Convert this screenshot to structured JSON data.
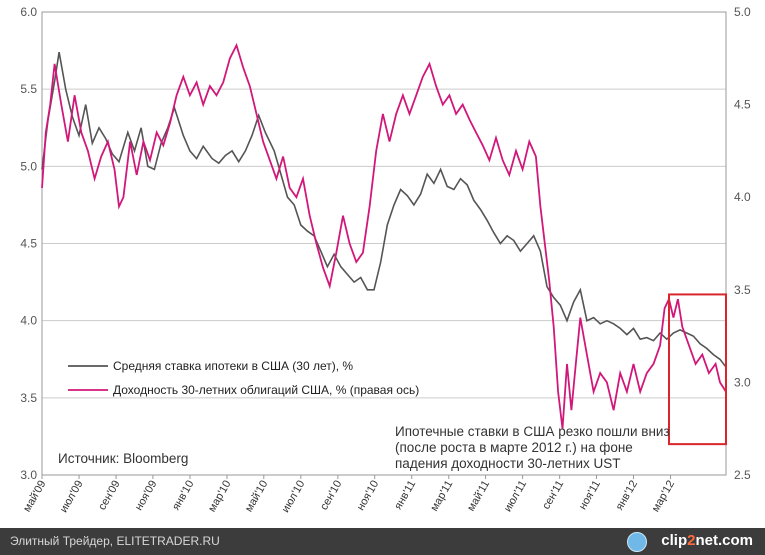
{
  "chart_data": {
    "type": "line",
    "title": "",
    "left_axis": {
      "ylim": [
        3.0,
        6.0
      ],
      "ticks": [
        "3.0",
        "3.5",
        "4.0",
        "4.5",
        "5.0",
        "5.5",
        "6.0"
      ]
    },
    "right_axis": {
      "ylim": [
        2.5,
        5.0
      ],
      "ticks": [
        "2.5",
        "3.0",
        "3.5",
        "4.0",
        "4.5",
        "5.0"
      ]
    },
    "x_range": [
      2009.333,
      2012.417
    ],
    "x_labels": [
      {
        "label": "май'09",
        "x": 2009.333
      },
      {
        "label": "июл'09",
        "x": 2009.5
      },
      {
        "label": "сен'09",
        "x": 2009.667
      },
      {
        "label": "ноя'09",
        "x": 2009.833
      },
      {
        "label": "янв'10",
        "x": 2010.0
      },
      {
        "label": "мар'10",
        "x": 2010.167
      },
      {
        "label": "май'10",
        "x": 2010.333
      },
      {
        "label": "июл'10",
        "x": 2010.5
      },
      {
        "label": "сен'10",
        "x": 2010.667
      },
      {
        "label": "ноя'10",
        "x": 2010.833
      },
      {
        "label": "янв'11",
        "x": 2011.0
      },
      {
        "label": "мар'11",
        "x": 2011.167
      },
      {
        "label": "май'11",
        "x": 2011.333
      },
      {
        "label": "июл'11",
        "x": 2011.5
      },
      {
        "label": "сен'11",
        "x": 2011.667
      },
      {
        "label": "ноя'11",
        "x": 2011.833
      },
      {
        "label": "янв'12",
        "x": 2012.0
      },
      {
        "label": "мар'12",
        "x": 2012.167
      }
    ],
    "series": [
      {
        "name": "Средняя ставка ипотеки в США (30 лет), %",
        "axis": "left",
        "color": "#555555",
        "points": [
          [
            2009.333,
            4.98
          ],
          [
            2009.36,
            5.3
          ],
          [
            2009.39,
            5.55
          ],
          [
            2009.41,
            5.74
          ],
          [
            2009.44,
            5.5
          ],
          [
            2009.47,
            5.32
          ],
          [
            2009.5,
            5.2
          ],
          [
            2009.53,
            5.4
          ],
          [
            2009.56,
            5.15
          ],
          [
            2009.59,
            5.25
          ],
          [
            2009.62,
            5.18
          ],
          [
            2009.65,
            5.08
          ],
          [
            2009.68,
            5.03
          ],
          [
            2009.72,
            5.22
          ],
          [
            2009.75,
            5.1
          ],
          [
            2009.78,
            5.25
          ],
          [
            2009.81,
            5.0
          ],
          [
            2009.84,
            4.98
          ],
          [
            2009.87,
            5.15
          ],
          [
            2009.9,
            5.25
          ],
          [
            2009.93,
            5.38
          ],
          [
            2009.97,
            5.2
          ],
          [
            2010.0,
            5.1
          ],
          [
            2010.03,
            5.05
          ],
          [
            2010.06,
            5.13
          ],
          [
            2010.1,
            5.05
          ],
          [
            2010.13,
            5.02
          ],
          [
            2010.16,
            5.07
          ],
          [
            2010.19,
            5.1
          ],
          [
            2010.22,
            5.03
          ],
          [
            2010.25,
            5.1
          ],
          [
            2010.28,
            5.2
          ],
          [
            2010.31,
            5.33
          ],
          [
            2010.34,
            5.22
          ],
          [
            2010.38,
            5.1
          ],
          [
            2010.41,
            4.95
          ],
          [
            2010.44,
            4.8
          ],
          [
            2010.47,
            4.75
          ],
          [
            2010.5,
            4.62
          ],
          [
            2010.53,
            4.58
          ],
          [
            2010.56,
            4.55
          ],
          [
            2010.59,
            4.45
          ],
          [
            2010.62,
            4.35
          ],
          [
            2010.65,
            4.43
          ],
          [
            2010.68,
            4.35
          ],
          [
            2010.71,
            4.3
          ],
          [
            2010.74,
            4.25
          ],
          [
            2010.77,
            4.28
          ],
          [
            2010.8,
            4.2
          ],
          [
            2010.83,
            4.2
          ],
          [
            2010.86,
            4.38
          ],
          [
            2010.89,
            4.62
          ],
          [
            2010.92,
            4.75
          ],
          [
            2010.95,
            4.85
          ],
          [
            2010.98,
            4.81
          ],
          [
            2011.01,
            4.75
          ],
          [
            2011.04,
            4.82
          ],
          [
            2011.07,
            4.95
          ],
          [
            2011.1,
            4.89
          ],
          [
            2011.13,
            4.98
          ],
          [
            2011.16,
            4.87
          ],
          [
            2011.19,
            4.85
          ],
          [
            2011.22,
            4.92
          ],
          [
            2011.25,
            4.88
          ],
          [
            2011.28,
            4.78
          ],
          [
            2011.31,
            4.72
          ],
          [
            2011.34,
            4.65
          ],
          [
            2011.37,
            4.57
          ],
          [
            2011.4,
            4.5
          ],
          [
            2011.43,
            4.55
          ],
          [
            2011.46,
            4.52
          ],
          [
            2011.49,
            4.45
          ],
          [
            2011.52,
            4.5
          ],
          [
            2011.55,
            4.55
          ],
          [
            2011.58,
            4.45
          ],
          [
            2011.61,
            4.22
          ],
          [
            2011.64,
            4.15
          ],
          [
            2011.67,
            4.1
          ],
          [
            2011.7,
            4.0
          ],
          [
            2011.73,
            4.12
          ],
          [
            2011.76,
            4.2
          ],
          [
            2011.79,
            4.0
          ],
          [
            2011.82,
            4.02
          ],
          [
            2011.85,
            3.98
          ],
          [
            2011.88,
            4.0
          ],
          [
            2011.91,
            3.98
          ],
          [
            2011.94,
            3.95
          ],
          [
            2011.97,
            3.91
          ],
          [
            2012.0,
            3.95
          ],
          [
            2012.03,
            3.88
          ],
          [
            2012.06,
            3.89
          ],
          [
            2012.09,
            3.87
          ],
          [
            2012.12,
            3.92
          ],
          [
            2012.15,
            3.88
          ],
          [
            2012.18,
            3.92
          ],
          [
            2012.21,
            3.94
          ],
          [
            2012.24,
            3.92
          ],
          [
            2012.27,
            3.9
          ],
          [
            2012.3,
            3.85
          ],
          [
            2012.33,
            3.82
          ],
          [
            2012.36,
            3.78
          ],
          [
            2012.39,
            3.75
          ],
          [
            2012.417,
            3.7
          ]
        ]
      },
      {
        "name": "Доходность 30-летних облигаций США, % (правая ось)",
        "axis": "right",
        "color": "#d1187a",
        "points": [
          [
            2009.333,
            4.05
          ],
          [
            2009.35,
            4.35
          ],
          [
            2009.37,
            4.5
          ],
          [
            2009.39,
            4.72
          ],
          [
            2009.42,
            4.5
          ],
          [
            2009.45,
            4.3
          ],
          [
            2009.48,
            4.55
          ],
          [
            2009.51,
            4.35
          ],
          [
            2009.54,
            4.25
          ],
          [
            2009.57,
            4.1
          ],
          [
            2009.6,
            4.22
          ],
          [
            2009.63,
            4.3
          ],
          [
            2009.66,
            4.15
          ],
          [
            2009.68,
            3.95
          ],
          [
            2009.7,
            4.0
          ],
          [
            2009.73,
            4.3
          ],
          [
            2009.76,
            4.12
          ],
          [
            2009.79,
            4.3
          ],
          [
            2009.82,
            4.2
          ],
          [
            2009.85,
            4.35
          ],
          [
            2009.88,
            4.28
          ],
          [
            2009.91,
            4.4
          ],
          [
            2009.94,
            4.55
          ],
          [
            2009.97,
            4.65
          ],
          [
            2010.0,
            4.55
          ],
          [
            2010.03,
            4.62
          ],
          [
            2010.06,
            4.5
          ],
          [
            2010.09,
            4.6
          ],
          [
            2010.12,
            4.55
          ],
          [
            2010.15,
            4.62
          ],
          [
            2010.18,
            4.75
          ],
          [
            2010.21,
            4.82
          ],
          [
            2010.24,
            4.7
          ],
          [
            2010.27,
            4.6
          ],
          [
            2010.3,
            4.45
          ],
          [
            2010.33,
            4.3
          ],
          [
            2010.36,
            4.2
          ],
          [
            2010.39,
            4.1
          ],
          [
            2010.42,
            4.22
          ],
          [
            2010.45,
            4.05
          ],
          [
            2010.48,
            4.0
          ],
          [
            2010.51,
            4.1
          ],
          [
            2010.54,
            3.9
          ],
          [
            2010.57,
            3.75
          ],
          [
            2010.6,
            3.62
          ],
          [
            2010.63,
            3.52
          ],
          [
            2010.66,
            3.7
          ],
          [
            2010.69,
            3.9
          ],
          [
            2010.72,
            3.75
          ],
          [
            2010.75,
            3.65
          ],
          [
            2010.78,
            3.7
          ],
          [
            2010.81,
            3.95
          ],
          [
            2010.84,
            4.25
          ],
          [
            2010.87,
            4.45
          ],
          [
            2010.9,
            4.3
          ],
          [
            2010.93,
            4.45
          ],
          [
            2010.96,
            4.55
          ],
          [
            2010.99,
            4.45
          ],
          [
            2011.02,
            4.55
          ],
          [
            2011.05,
            4.65
          ],
          [
            2011.08,
            4.72
          ],
          [
            2011.11,
            4.6
          ],
          [
            2011.14,
            4.5
          ],
          [
            2011.17,
            4.55
          ],
          [
            2011.2,
            4.45
          ],
          [
            2011.23,
            4.5
          ],
          [
            2011.26,
            4.42
          ],
          [
            2011.29,
            4.35
          ],
          [
            2011.32,
            4.28
          ],
          [
            2011.35,
            4.2
          ],
          [
            2011.38,
            4.32
          ],
          [
            2011.41,
            4.2
          ],
          [
            2011.44,
            4.12
          ],
          [
            2011.47,
            4.25
          ],
          [
            2011.5,
            4.15
          ],
          [
            2011.53,
            4.3
          ],
          [
            2011.56,
            4.22
          ],
          [
            2011.58,
            3.95
          ],
          [
            2011.6,
            3.75
          ],
          [
            2011.62,
            3.55
          ],
          [
            2011.64,
            3.3
          ],
          [
            2011.66,
            2.95
          ],
          [
            2011.68,
            2.75
          ],
          [
            2011.7,
            3.1
          ],
          [
            2011.72,
            2.85
          ],
          [
            2011.74,
            3.1
          ],
          [
            2011.76,
            3.35
          ],
          [
            2011.79,
            3.15
          ],
          [
            2011.82,
            2.95
          ],
          [
            2011.85,
            3.05
          ],
          [
            2011.88,
            3.0
          ],
          [
            2011.91,
            2.85
          ],
          [
            2011.94,
            3.05
          ],
          [
            2011.97,
            2.95
          ],
          [
            2012.0,
            3.1
          ],
          [
            2012.03,
            2.95
          ],
          [
            2012.06,
            3.05
          ],
          [
            2012.09,
            3.1
          ],
          [
            2012.12,
            3.2
          ],
          [
            2012.14,
            3.4
          ],
          [
            2012.16,
            3.45
          ],
          [
            2012.18,
            3.35
          ],
          [
            2012.2,
            3.45
          ],
          [
            2012.22,
            3.3
          ],
          [
            2012.25,
            3.2
          ],
          [
            2012.28,
            3.1
          ],
          [
            2012.31,
            3.15
          ],
          [
            2012.34,
            3.05
          ],
          [
            2012.37,
            3.1
          ],
          [
            2012.39,
            3.0
          ],
          [
            2012.417,
            2.95
          ]
        ]
      }
    ],
    "highlight_box": {
      "x_range": [
        2012.16,
        2012.417
      ],
      "left_y_range": [
        3.2,
        4.17
      ]
    },
    "legend": [
      {
        "label": "Средняя ставка ипотеки в США (30 лет), %",
        "color": "#555555"
      },
      {
        "label": "Доходность 30-летних облигаций США, % (правая ось)",
        "color": "#d1187a"
      }
    ],
    "annotation_lines": [
      "Ипотечные ставки в США резко пошли вниз",
      "(после роста  в марте 2012 г.) на фоне",
      "падения доходности 30-летних UST"
    ],
    "source": "Источник: Bloomberg"
  },
  "footer": {
    "left_text": "Элитный Трейдер, ELITETRADER.RU",
    "brand_a": "clip",
    "brand_b": "2",
    "brand_c": "net.com"
  },
  "colors": {
    "grid": "#cccccc",
    "highlight": "#d8262c"
  }
}
